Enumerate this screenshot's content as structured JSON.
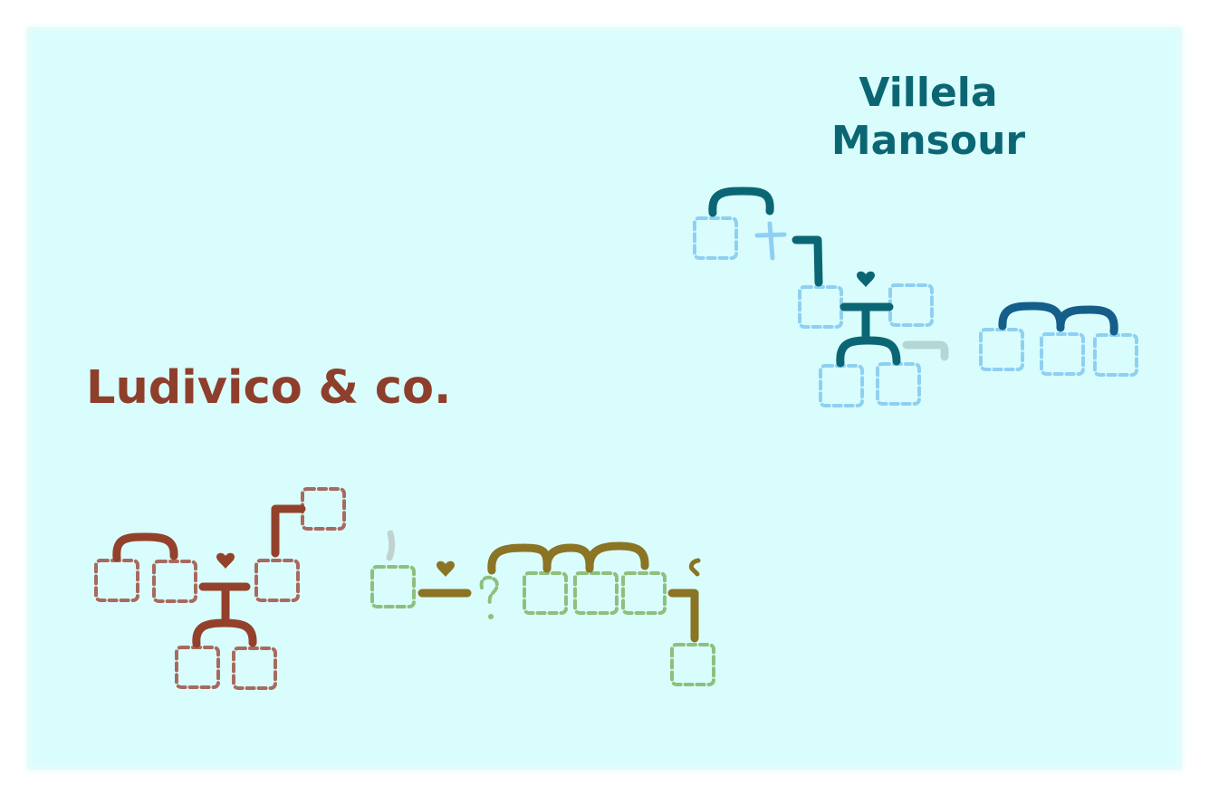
{
  "families": [
    {
      "id": "villela",
      "name_lines": [
        "Villela",
        "Mansour"
      ],
      "colors": {
        "title": "#0b6674",
        "line": "#0b6674",
        "box": "#8fd0f2",
        "accent": "#155e8a",
        "faded": "#b6d6d6"
      },
      "symbols": {
        "union": "heart",
        "deceased": "cross"
      }
    },
    {
      "id": "ludivico",
      "name": "Ludivico & co.",
      "colors": {
        "title": "#8e3f2c",
        "line": "#93412b",
        "box": "#a86a5e",
        "branch": "#8b7424",
        "branch_box": "#8fbf7c",
        "faded": "#c3d2cf"
      },
      "symbols": {
        "union": "heart",
        "unknown": "?",
        "broken_union": "broken-heart"
      }
    }
  ]
}
